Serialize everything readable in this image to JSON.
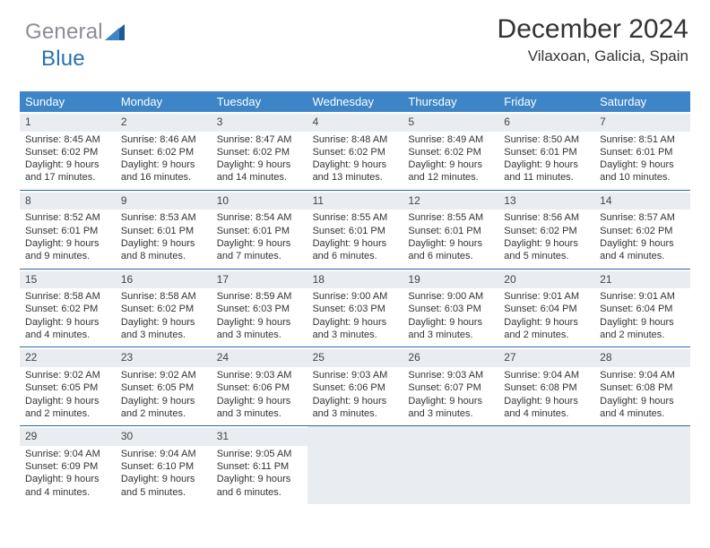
{
  "logo": {
    "part1": "General",
    "part2": "Blue"
  },
  "header": {
    "title": "December 2024",
    "location": "Vilaxoan, Galicia, Spain"
  },
  "colors": {
    "weekday_bg": "#3d85c6",
    "weekday_text": "#ffffff",
    "daynum_bg": "#e9edf1",
    "rule": "#2b6aa8",
    "logo_gray": "#8a8f94",
    "logo_blue": "#2b6fb3",
    "text": "#333333"
  },
  "weekdays": [
    "Sunday",
    "Monday",
    "Tuesday",
    "Wednesday",
    "Thursday",
    "Friday",
    "Saturday"
  ],
  "weeks": [
    [
      {
        "num": "1",
        "sunrise": "Sunrise: 8:45 AM",
        "sunset": "Sunset: 6:02 PM",
        "day1": "Daylight: 9 hours",
        "day2": "and 17 minutes."
      },
      {
        "num": "2",
        "sunrise": "Sunrise: 8:46 AM",
        "sunset": "Sunset: 6:02 PM",
        "day1": "Daylight: 9 hours",
        "day2": "and 16 minutes."
      },
      {
        "num": "3",
        "sunrise": "Sunrise: 8:47 AM",
        "sunset": "Sunset: 6:02 PM",
        "day1": "Daylight: 9 hours",
        "day2": "and 14 minutes."
      },
      {
        "num": "4",
        "sunrise": "Sunrise: 8:48 AM",
        "sunset": "Sunset: 6:02 PM",
        "day1": "Daylight: 9 hours",
        "day2": "and 13 minutes."
      },
      {
        "num": "5",
        "sunrise": "Sunrise: 8:49 AM",
        "sunset": "Sunset: 6:02 PM",
        "day1": "Daylight: 9 hours",
        "day2": "and 12 minutes."
      },
      {
        "num": "6",
        "sunrise": "Sunrise: 8:50 AM",
        "sunset": "Sunset: 6:01 PM",
        "day1": "Daylight: 9 hours",
        "day2": "and 11 minutes."
      },
      {
        "num": "7",
        "sunrise": "Sunrise: 8:51 AM",
        "sunset": "Sunset: 6:01 PM",
        "day1": "Daylight: 9 hours",
        "day2": "and 10 minutes."
      }
    ],
    [
      {
        "num": "8",
        "sunrise": "Sunrise: 8:52 AM",
        "sunset": "Sunset: 6:01 PM",
        "day1": "Daylight: 9 hours",
        "day2": "and 9 minutes."
      },
      {
        "num": "9",
        "sunrise": "Sunrise: 8:53 AM",
        "sunset": "Sunset: 6:01 PM",
        "day1": "Daylight: 9 hours",
        "day2": "and 8 minutes."
      },
      {
        "num": "10",
        "sunrise": "Sunrise: 8:54 AM",
        "sunset": "Sunset: 6:01 PM",
        "day1": "Daylight: 9 hours",
        "day2": "and 7 minutes."
      },
      {
        "num": "11",
        "sunrise": "Sunrise: 8:55 AM",
        "sunset": "Sunset: 6:01 PM",
        "day1": "Daylight: 9 hours",
        "day2": "and 6 minutes."
      },
      {
        "num": "12",
        "sunrise": "Sunrise: 8:55 AM",
        "sunset": "Sunset: 6:01 PM",
        "day1": "Daylight: 9 hours",
        "day2": "and 6 minutes."
      },
      {
        "num": "13",
        "sunrise": "Sunrise: 8:56 AM",
        "sunset": "Sunset: 6:02 PM",
        "day1": "Daylight: 9 hours",
        "day2": "and 5 minutes."
      },
      {
        "num": "14",
        "sunrise": "Sunrise: 8:57 AM",
        "sunset": "Sunset: 6:02 PM",
        "day1": "Daylight: 9 hours",
        "day2": "and 4 minutes."
      }
    ],
    [
      {
        "num": "15",
        "sunrise": "Sunrise: 8:58 AM",
        "sunset": "Sunset: 6:02 PM",
        "day1": "Daylight: 9 hours",
        "day2": "and 4 minutes."
      },
      {
        "num": "16",
        "sunrise": "Sunrise: 8:58 AM",
        "sunset": "Sunset: 6:02 PM",
        "day1": "Daylight: 9 hours",
        "day2": "and 3 minutes."
      },
      {
        "num": "17",
        "sunrise": "Sunrise: 8:59 AM",
        "sunset": "Sunset: 6:03 PM",
        "day1": "Daylight: 9 hours",
        "day2": "and 3 minutes."
      },
      {
        "num": "18",
        "sunrise": "Sunrise: 9:00 AM",
        "sunset": "Sunset: 6:03 PM",
        "day1": "Daylight: 9 hours",
        "day2": "and 3 minutes."
      },
      {
        "num": "19",
        "sunrise": "Sunrise: 9:00 AM",
        "sunset": "Sunset: 6:03 PM",
        "day1": "Daylight: 9 hours",
        "day2": "and 3 minutes."
      },
      {
        "num": "20",
        "sunrise": "Sunrise: 9:01 AM",
        "sunset": "Sunset: 6:04 PM",
        "day1": "Daylight: 9 hours",
        "day2": "and 2 minutes."
      },
      {
        "num": "21",
        "sunrise": "Sunrise: 9:01 AM",
        "sunset": "Sunset: 6:04 PM",
        "day1": "Daylight: 9 hours",
        "day2": "and 2 minutes."
      }
    ],
    [
      {
        "num": "22",
        "sunrise": "Sunrise: 9:02 AM",
        "sunset": "Sunset: 6:05 PM",
        "day1": "Daylight: 9 hours",
        "day2": "and 2 minutes."
      },
      {
        "num": "23",
        "sunrise": "Sunrise: 9:02 AM",
        "sunset": "Sunset: 6:05 PM",
        "day1": "Daylight: 9 hours",
        "day2": "and 2 minutes."
      },
      {
        "num": "24",
        "sunrise": "Sunrise: 9:03 AM",
        "sunset": "Sunset: 6:06 PM",
        "day1": "Daylight: 9 hours",
        "day2": "and 3 minutes."
      },
      {
        "num": "25",
        "sunrise": "Sunrise: 9:03 AM",
        "sunset": "Sunset: 6:06 PM",
        "day1": "Daylight: 9 hours",
        "day2": "and 3 minutes."
      },
      {
        "num": "26",
        "sunrise": "Sunrise: 9:03 AM",
        "sunset": "Sunset: 6:07 PM",
        "day1": "Daylight: 9 hours",
        "day2": "and 3 minutes."
      },
      {
        "num": "27",
        "sunrise": "Sunrise: 9:04 AM",
        "sunset": "Sunset: 6:08 PM",
        "day1": "Daylight: 9 hours",
        "day2": "and 4 minutes."
      },
      {
        "num": "28",
        "sunrise": "Sunrise: 9:04 AM",
        "sunset": "Sunset: 6:08 PM",
        "day1": "Daylight: 9 hours",
        "day2": "and 4 minutes."
      }
    ],
    [
      {
        "num": "29",
        "sunrise": "Sunrise: 9:04 AM",
        "sunset": "Sunset: 6:09 PM",
        "day1": "Daylight: 9 hours",
        "day2": "and 4 minutes."
      },
      {
        "num": "30",
        "sunrise": "Sunrise: 9:04 AM",
        "sunset": "Sunset: 6:10 PM",
        "day1": "Daylight: 9 hours",
        "day2": "and 5 minutes."
      },
      {
        "num": "31",
        "sunrise": "Sunrise: 9:05 AM",
        "sunset": "Sunset: 6:11 PM",
        "day1": "Daylight: 9 hours",
        "day2": "and 6 minutes."
      },
      null,
      null,
      null,
      null
    ]
  ]
}
